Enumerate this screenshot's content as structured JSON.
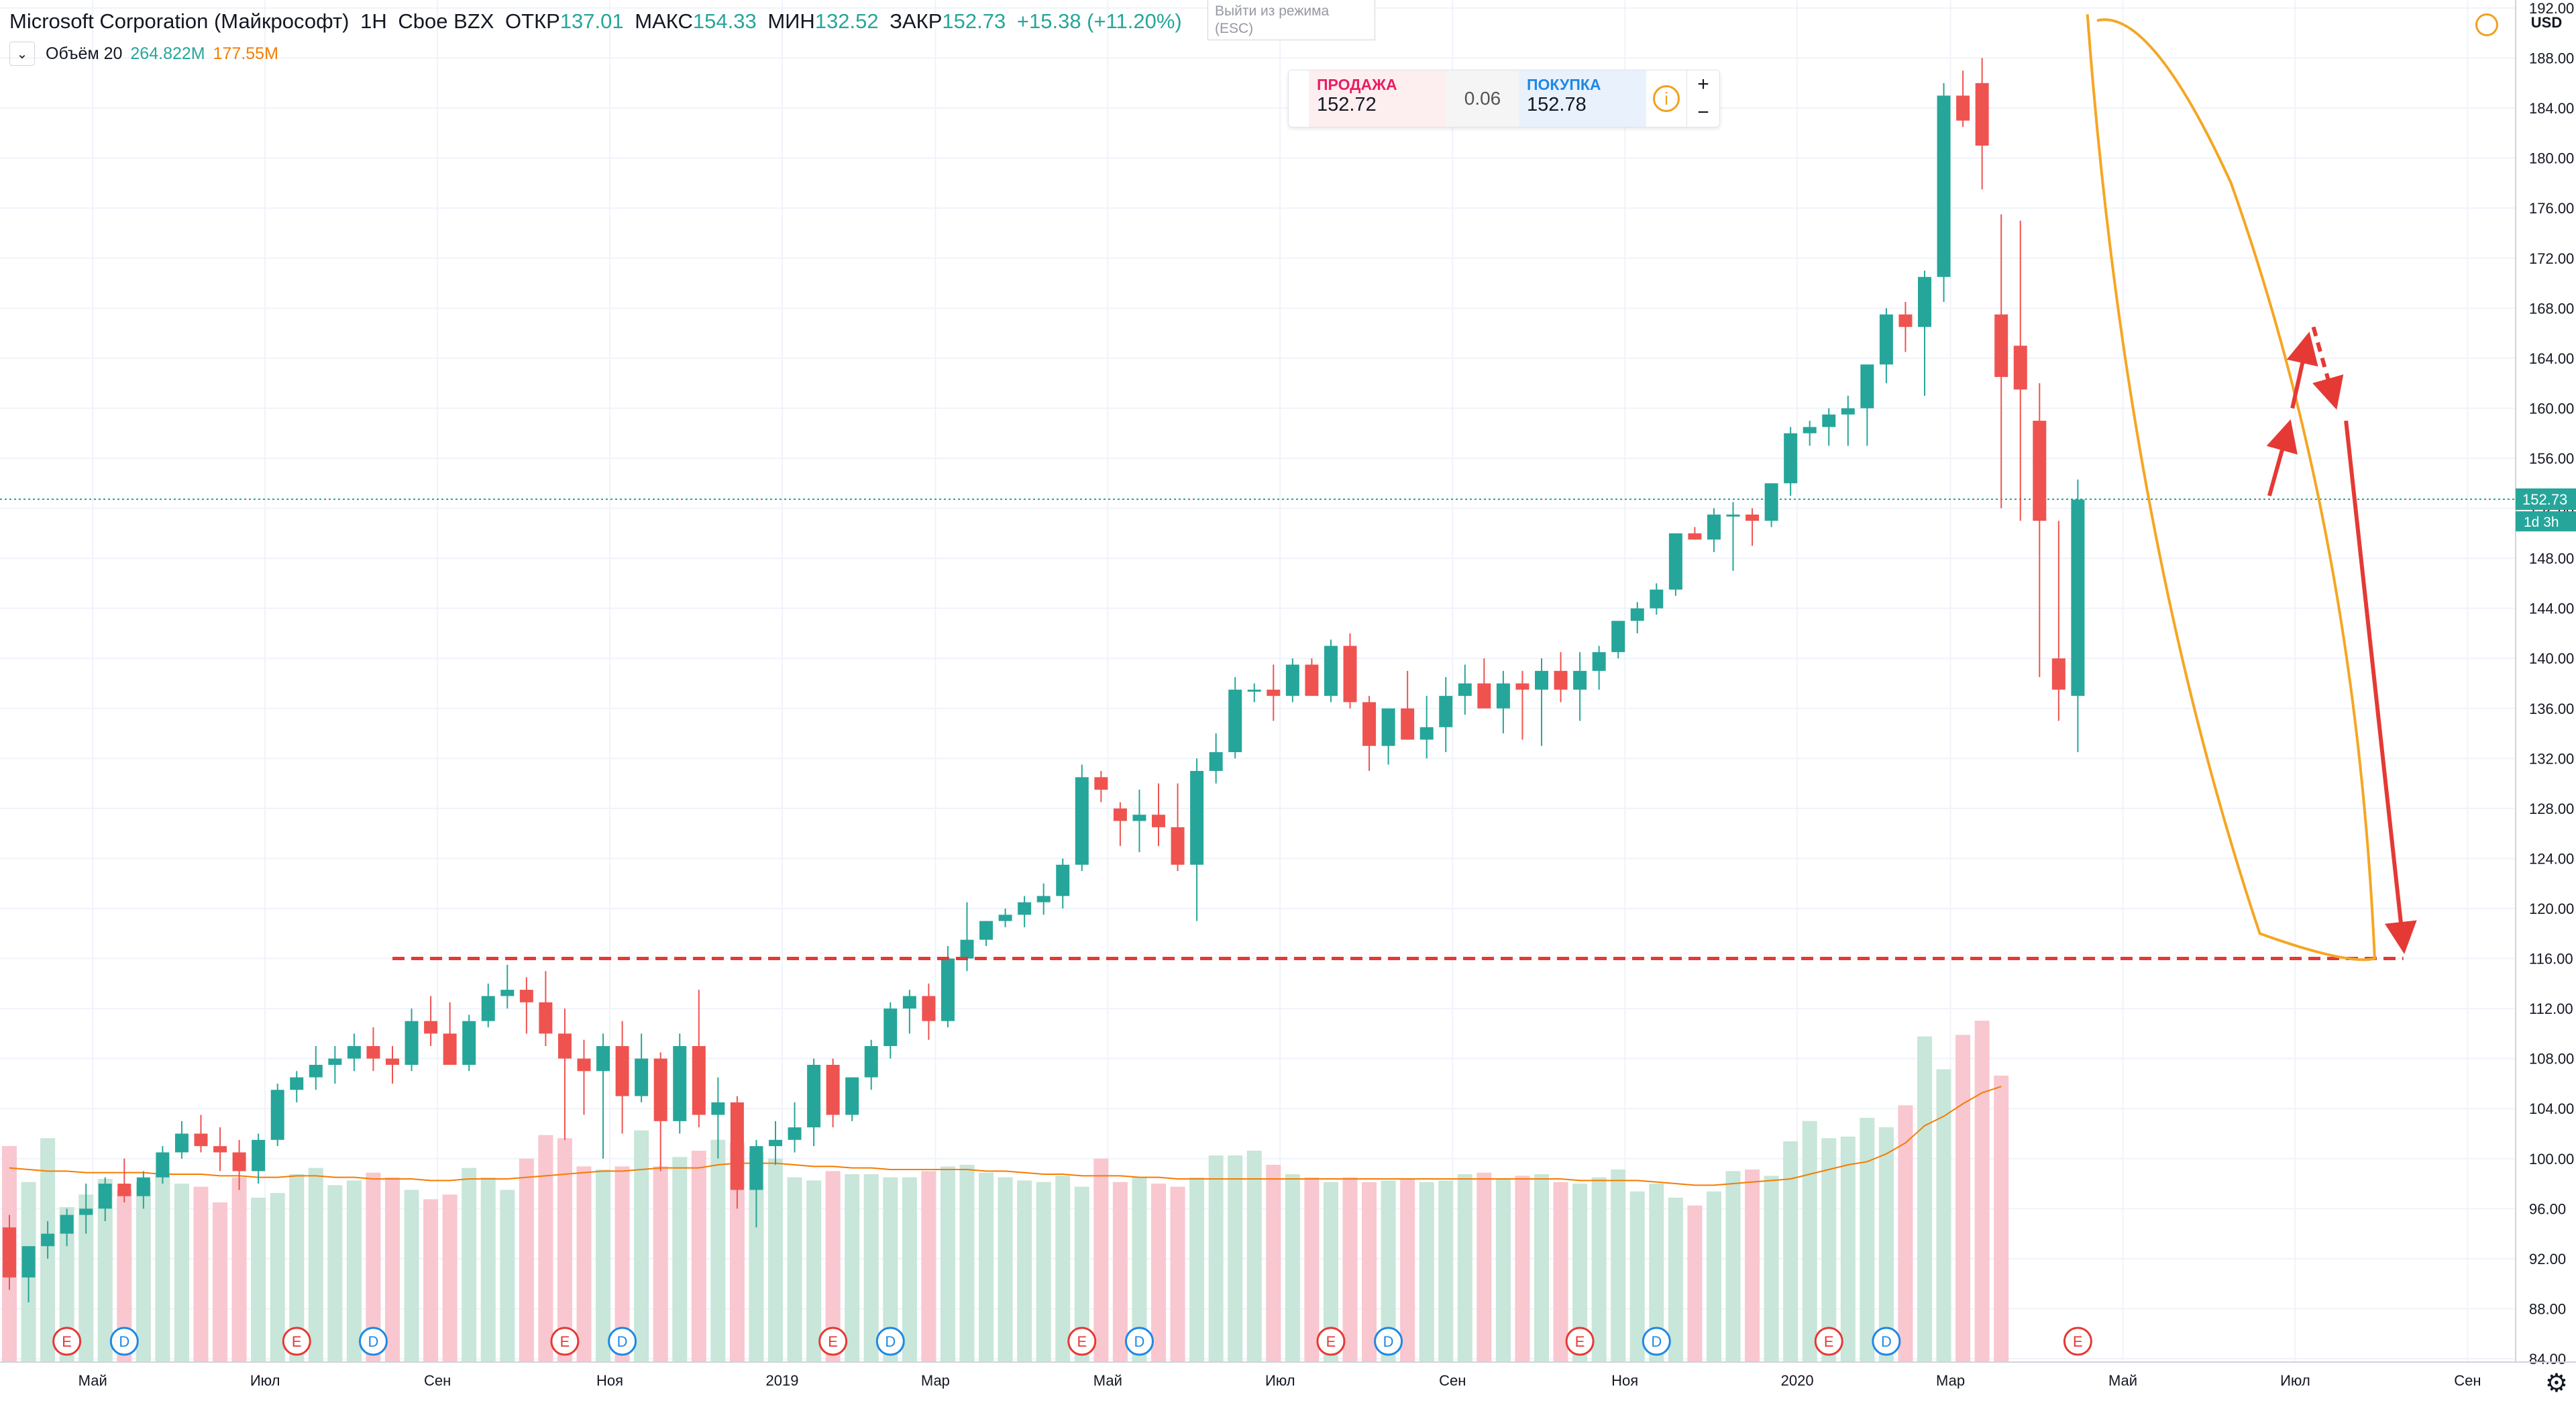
{
  "header": {
    "symbol": "Microsoft Corporation (Майкрософт)",
    "interval": "1Н",
    "exchange": "Cboe BZX",
    "open_label": "ОТКР",
    "open": "137.01",
    "high_label": "МАКС",
    "high": "154.33",
    "low_label": "МИН",
    "low": "132.52",
    "close_label": "ЗАКР",
    "close": "152.73",
    "change": "+15.38 (+11.20%)"
  },
  "volume_legend": {
    "label": "Объём 20",
    "value": "264.822M",
    "ma": "177.55M"
  },
  "escape_hint": "Выйти из режима (ESC)",
  "trade_panel": {
    "sell_label": "ПРОДАЖА",
    "sell_price": "152.72",
    "spread": "0.06",
    "buy_label": "ПОКУПКА",
    "buy_price": "152.78",
    "plus": "+",
    "minus": "−"
  },
  "currency": "USD",
  "price_tag": "152.73",
  "countdown": "1d 3h",
  "colors": {
    "up": "#26a69a",
    "down": "#ef5350",
    "up_vol": "#c8e6d9",
    "down_vol": "#f8c7cf",
    "ma": "#f57c00",
    "drawing": "#f5a623",
    "arrows": "#e53935"
  },
  "chart_data": {
    "type": "candlestick",
    "interval": "week",
    "y_axis": {
      "min": 84,
      "max": 192,
      "ticks": [
        84,
        88,
        92,
        96,
        100,
        104,
        108,
        112,
        116,
        120,
        124,
        128,
        132,
        136,
        140,
        144,
        148,
        152,
        156,
        160,
        164,
        168,
        172,
        176,
        180,
        184,
        188,
        192
      ],
      "currency": "USD"
    },
    "x_axis": {
      "ticks": [
        "Май",
        "Июл",
        "Сен",
        "Ноя",
        "2019",
        "Мар",
        "Май",
        "Июл",
        "Сен",
        "Ноя",
        "2020",
        "Мар",
        "Май",
        "Июл",
        "Сен"
      ]
    },
    "ohlc": [
      [
        94.5,
        95.5,
        89.5,
        90.5
      ],
      [
        90.5,
        93,
        88.5,
        93
      ],
      [
        93,
        95,
        92,
        94
      ],
      [
        94,
        96,
        93,
        95.5
      ],
      [
        95.5,
        98,
        94,
        96
      ],
      [
        96,
        98.5,
        95,
        98
      ],
      [
        98,
        100,
        96.5,
        97
      ],
      [
        97,
        99,
        96,
        98.5
      ],
      [
        98.5,
        101,
        98,
        100.5
      ],
      [
        100.5,
        103,
        100,
        102
      ],
      [
        102,
        103.5,
        100.5,
        101
      ],
      [
        101,
        102.5,
        99,
        100.5
      ],
      [
        100.5,
        101.5,
        97.5,
        99
      ],
      [
        99,
        102,
        98,
        101.5
      ],
      [
        101.5,
        106,
        101,
        105.5
      ],
      [
        105.5,
        107,
        104.5,
        106.5
      ],
      [
        106.5,
        109,
        105.5,
        107.5
      ],
      [
        107.5,
        109,
        106,
        108
      ],
      [
        108,
        110,
        107,
        109
      ],
      [
        109,
        110.5,
        107,
        108
      ],
      [
        108,
        109,
        106,
        107.5
      ],
      [
        107.5,
        112,
        107,
        111
      ],
      [
        111,
        113,
        109,
        110
      ],
      [
        110,
        112.5,
        107.5,
        107.5
      ],
      [
        107.5,
        111.5,
        107,
        111
      ],
      [
        111,
        114,
        110.5,
        113
      ],
      [
        113,
        115.5,
        112,
        113.5
      ],
      [
        113.5,
        114.5,
        110,
        112.5
      ],
      [
        112.5,
        115,
        109,
        110
      ],
      [
        110,
        112,
        101.5,
        108
      ],
      [
        108,
        109.5,
        103.5,
        107
      ],
      [
        107,
        110,
        100,
        109
      ],
      [
        109,
        111,
        102,
        105
      ],
      [
        105,
        110,
        104.5,
        108
      ],
      [
        108,
        108.5,
        99,
        103
      ],
      [
        103,
        110,
        102,
        109
      ],
      [
        109,
        113.5,
        102.5,
        103.5
      ],
      [
        103.5,
        106.5,
        100,
        104.5
      ],
      [
        104.5,
        105,
        96,
        97.5
      ],
      [
        97.5,
        101.5,
        94.5,
        101
      ],
      [
        101,
        103,
        99.5,
        101.5
      ],
      [
        101.5,
        104.5,
        100.5,
        102.5
      ],
      [
        102.5,
        108,
        101,
        107.5
      ],
      [
        107.5,
        108,
        102.5,
        103.5
      ],
      [
        103.5,
        106.5,
        103,
        106.5
      ],
      [
        106.5,
        109.5,
        105.5,
        109
      ],
      [
        109,
        112.5,
        108,
        112
      ],
      [
        112,
        113.5,
        110,
        113
      ],
      [
        113,
        114,
        109.5,
        111
      ],
      [
        111,
        117,
        110.5,
        116
      ],
      [
        116,
        120.5,
        115,
        117.5
      ],
      [
        117.5,
        119,
        117,
        119
      ],
      [
        119,
        120,
        118.5,
        119.5
      ],
      [
        119.5,
        121,
        118.5,
        120.5
      ],
      [
        120.5,
        122,
        119.5,
        121
      ],
      [
        121,
        124,
        120,
        123.5
      ],
      [
        123.5,
        131.5,
        123,
        130.5
      ],
      [
        130.5,
        131,
        128.5,
        129.5
      ],
      [
        128,
        128.5,
        125,
        127
      ],
      [
        127,
        129.5,
        124.5,
        127.5
      ],
      [
        127.5,
        130,
        125,
        126.5
      ],
      [
        126.5,
        130,
        123,
        123.5
      ],
      [
        123.5,
        132,
        119,
        131
      ],
      [
        131,
        134,
        130,
        132.5
      ],
      [
        132.5,
        138.5,
        132,
        137.5
      ],
      [
        137.5,
        138,
        136.5,
        137.5
      ],
      [
        137.5,
        139.5,
        135,
        137
      ],
      [
        137,
        140,
        136.5,
        139.5
      ],
      [
        139.5,
        140,
        137,
        137
      ],
      [
        137,
        141.5,
        136.5,
        141
      ],
      [
        141,
        142,
        136,
        136.5
      ],
      [
        136.5,
        137,
        131,
        133
      ],
      [
        133,
        135,
        131.5,
        136
      ],
      [
        136,
        139,
        133.5,
        133.5
      ],
      [
        133.5,
        137,
        132,
        134.5
      ],
      [
        134.5,
        138.5,
        132.5,
        137
      ],
      [
        137,
        139.5,
        135.5,
        138
      ],
      [
        138,
        140,
        136,
        136
      ],
      [
        136,
        139,
        134,
        138
      ],
      [
        138,
        139,
        133.5,
        137.5
      ],
      [
        137.5,
        140,
        133,
        139
      ],
      [
        139,
        140.5,
        136.5,
        137.5
      ],
      [
        137.5,
        140.5,
        135,
        139
      ],
      [
        139,
        141,
        137.5,
        140.5
      ],
      [
        140.5,
        142,
        140,
        143
      ],
      [
        143,
        144.5,
        142,
        144
      ],
      [
        144,
        146,
        143.5,
        145.5
      ],
      [
        145.5,
        149.5,
        145,
        150
      ],
      [
        150,
        150.5,
        149.5,
        149.5
      ],
      [
        149.5,
        152,
        148.5,
        151.5
      ],
      [
        151.5,
        152.5,
        147,
        151.5
      ],
      [
        151.5,
        152,
        149,
        151
      ],
      [
        151,
        154,
        150.5,
        154
      ],
      [
        154,
        158.5,
        153,
        158
      ],
      [
        158,
        159,
        157,
        158.5
      ],
      [
        158.5,
        160,
        157,
        159.5
      ],
      [
        159.5,
        161,
        157,
        160
      ],
      [
        160,
        163,
        157,
        163.5
      ],
      [
        163.5,
        168,
        162,
        167.5
      ],
      [
        167.5,
        168.5,
        164.5,
        166.5
      ],
      [
        166.5,
        171,
        161,
        170.5
      ],
      [
        170.5,
        186,
        168.5,
        185
      ],
      [
        185,
        187,
        182.5,
        183
      ],
      [
        186,
        188,
        177.5,
        181
      ],
      [
        167.5,
        175.5,
        152,
        162.5
      ],
      [
        165,
        175,
        151,
        161.5
      ],
      [
        159,
        162,
        138.5,
        151
      ],
      [
        140,
        151,
        135,
        137.5
      ],
      [
        137,
        154.3,
        132.5,
        152.7
      ]
    ],
    "volume_millions": [
      138,
      115,
      143,
      99,
      107,
      117,
      110,
      115,
      120,
      114,
      112,
      102,
      118,
      105,
      108,
      120,
      124,
      113,
      116,
      121,
      118,
      110,
      104,
      107,
      124,
      118,
      110,
      130,
      145,
      143,
      125,
      123,
      125,
      148,
      125,
      131,
      135,
      142,
      140,
      134,
      130,
      118,
      116,
      122,
      120,
      120,
      118,
      118,
      122,
      125,
      126,
      121,
      118,
      116,
      115,
      119,
      112,
      130,
      115,
      118,
      114,
      112,
      118,
      132,
      132,
      135,
      126,
      120,
      118,
      115,
      118,
      115,
      116,
      117,
      115,
      116,
      120,
      121,
      117,
      119,
      120,
      115,
      114,
      118,
      123,
      109,
      114,
      105,
      100,
      109,
      122,
      123,
      119,
      141,
      154,
      143,
      144,
      156,
      150,
      164,
      208,
      187,
      209,
      218,
      183
    ],
    "volume_ma_millions": [
      124,
      123,
      122,
      122,
      121,
      121,
      121,
      121,
      120,
      120,
      120,
      119,
      119,
      118,
      118,
      119,
      119,
      118,
      118,
      117,
      117,
      117,
      116,
      116,
      117,
      117,
      117,
      118,
      119,
      120,
      121,
      122,
      122,
      123,
      124,
      124,
      124,
      126,
      127,
      127,
      127,
      126,
      125,
      125,
      124,
      124,
      123,
      123,
      123,
      123,
      123,
      122,
      122,
      121,
      120,
      120,
      119,
      119,
      119,
      118,
      118,
      117,
      117,
      117,
      117,
      117,
      117,
      117,
      117,
      117,
      117,
      117,
      117,
      117,
      117,
      117,
      117,
      117,
      117,
      117,
      117,
      117,
      116,
      116,
      116,
      116,
      115,
      114,
      113,
      113,
      114,
      115,
      116,
      117,
      120,
      123,
      126,
      128,
      133,
      140,
      151,
      157,
      165,
      172,
      176
    ],
    "event_markers": [
      {
        "type": "E",
        "index": 3
      },
      {
        "type": "D",
        "index": 6
      },
      {
        "type": "E",
        "index": 15
      },
      {
        "type": "D",
        "index": 19
      },
      {
        "type": "E",
        "index": 29
      },
      {
        "type": "D",
        "index": 32
      },
      {
        "type": "E",
        "index": 43
      },
      {
        "type": "D",
        "index": 46
      },
      {
        "type": "E",
        "index": 56
      },
      {
        "type": "D",
        "index": 59
      },
      {
        "type": "E",
        "index": 69
      },
      {
        "type": "D",
        "index": 72
      },
      {
        "type": "E",
        "index": 82
      },
      {
        "type": "D",
        "index": 86
      },
      {
        "type": "E",
        "index": 95
      },
      {
        "type": "D",
        "index": 98
      },
      {
        "type": "E",
        "index": 108
      }
    ],
    "last_price": 152.73,
    "support_level": 116,
    "drawings": {
      "arc": [
        [
          0.5,
          191.5
        ],
        [
          2.5,
          150
        ],
        [
          9.5,
          118
        ],
        [
          15.5,
          116
        ],
        [
          14.5,
          150
        ],
        [
          8,
          178
        ],
        [
          1,
          191
        ]
      ],
      "arrows": [
        [
          10,
          153,
          11,
          158.5
        ],
        [
          11.2,
          160,
          12,
          165.5
        ],
        [
          12.3,
          166.5,
          13.4,
          160.5
        ],
        [
          14,
          159,
          17,
          117
        ]
      ]
    }
  }
}
